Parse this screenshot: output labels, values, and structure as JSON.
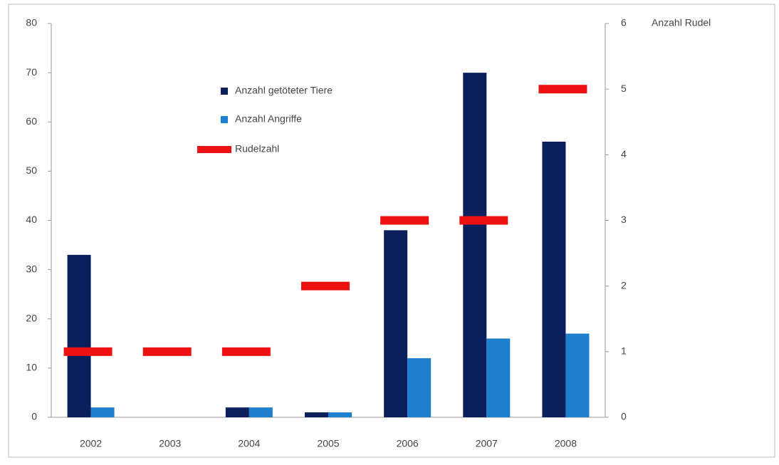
{
  "chart_data": {
    "type": "bar",
    "categories": [
      "2002",
      "2003",
      "2004",
      "2005",
      "2006",
      "2007",
      "2008"
    ],
    "series": [
      {
        "name": "Anzahl getöteter Tiere",
        "color": "#0a1f5c",
        "values": [
          33,
          0,
          2,
          1,
          38,
          70,
          56
        ]
      },
      {
        "name": "Anzahl Angriffe",
        "color": "#1f7fcf",
        "values": [
          2,
          0,
          2,
          1,
          12,
          16,
          17
        ]
      },
      {
        "name": "Rudelzahl",
        "color": "#ee1111",
        "axis": "y2",
        "marker": "dash",
        "values": [
          1,
          1,
          1,
          2,
          3,
          3,
          5
        ]
      }
    ],
    "ylim": [
      0,
      80
    ],
    "yticks": [
      0,
      10,
      20,
      30,
      40,
      50,
      60,
      70,
      80
    ],
    "y2lim": [
      0,
      6
    ],
    "y2ticks": [
      0,
      1,
      2,
      3,
      4,
      5,
      6
    ],
    "y2label": "Anzahl Rudel",
    "grid": false
  }
}
